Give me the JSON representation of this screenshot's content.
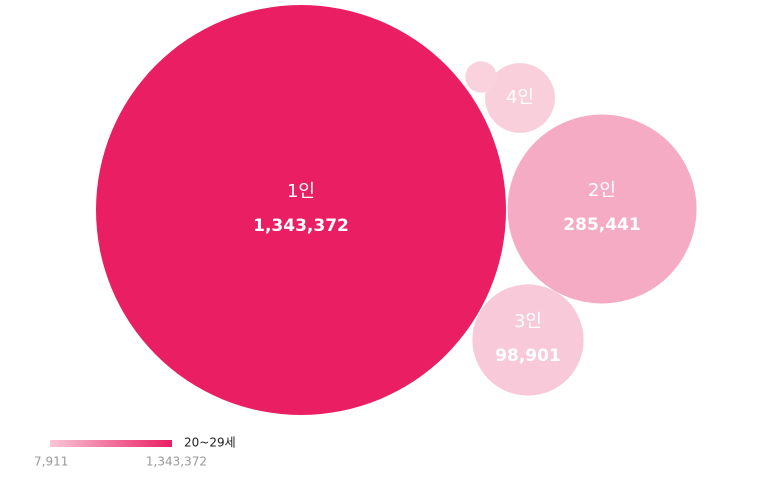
{
  "chart_data": {
    "type": "bubble",
    "series": [
      {
        "name": "20~29세",
        "categories": [
          "1인",
          "2인",
          "3인",
          "4인",
          null
        ],
        "values": [
          1343372,
          285441,
          98901,
          39000,
          7911
        ],
        "value_labels": [
          "1,343,372",
          "285,441",
          "98,901",
          null,
          null
        ],
        "colors": [
          "#e91e63",
          "#f5abc4",
          "#f8c9d8",
          "#f9cfdc",
          "#fad2de"
        ]
      }
    ],
    "colorbar": {
      "min": {
        "value": 7911,
        "label": "7,911"
      },
      "max": {
        "value": 1343372,
        "label": "1,343,372"
      },
      "colors": [
        "#f9c6d7",
        "#e91e63"
      ]
    }
  }
}
